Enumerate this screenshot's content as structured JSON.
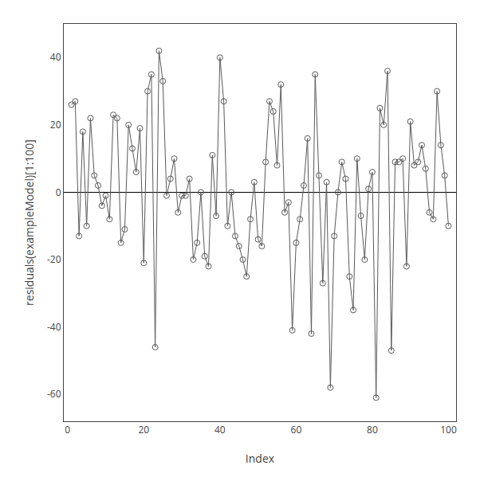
{
  "chart_data": {
    "type": "line",
    "x_label": "Index",
    "y_label": "residuals(exampleModel)[1:100]",
    "x": [
      1,
      2,
      3,
      4,
      5,
      6,
      7,
      8,
      9,
      10,
      11,
      12,
      13,
      14,
      15,
      16,
      17,
      18,
      19,
      20,
      21,
      22,
      23,
      24,
      25,
      26,
      27,
      28,
      29,
      30,
      31,
      32,
      33,
      34,
      35,
      36,
      37,
      38,
      39,
      40,
      41,
      42,
      43,
      44,
      45,
      46,
      47,
      48,
      49,
      50,
      51,
      52,
      53,
      54,
      55,
      56,
      57,
      58,
      59,
      60,
      61,
      62,
      63,
      64,
      65,
      66,
      67,
      68,
      69,
      70,
      71,
      72,
      73,
      74,
      75,
      76,
      77,
      78,
      79,
      80,
      81,
      82,
      83,
      84,
      85,
      86,
      87,
      88,
      89,
      90,
      91,
      92,
      93,
      94,
      95,
      96,
      97,
      98,
      99,
      100
    ],
    "values": [
      26,
      27,
      -13,
      18,
      -10,
      22,
      5,
      2,
      -4,
      -1,
      -8,
      23,
      22,
      -15,
      -11,
      20,
      13,
      6,
      19,
      -21,
      30,
      35,
      -46,
      42,
      33,
      -1,
      4,
      10,
      -6,
      -1,
      -1,
      4,
      -20,
      -15,
      0,
      -19,
      -22,
      11,
      -7,
      40,
      27,
      -10,
      0,
      -13,
      -16,
      -20,
      -25,
      -8,
      3,
      -14,
      -16,
      9,
      27,
      24,
      8,
      32,
      -6,
      -3,
      -41,
      -15,
      -8,
      2,
      16,
      -42,
      35,
      5,
      -27,
      3,
      -58,
      -13,
      0,
      9,
      4,
      -25,
      -35,
      10,
      -7,
      -20,
      1,
      6,
      -61,
      25,
      20,
      36,
      -47,
      9,
      9,
      10,
      -22,
      21,
      8,
      9,
      14,
      7,
      -6,
      -8,
      30,
      14,
      5,
      -10
    ],
    "color": "#595959",
    "marker": "circle-open",
    "xlim": [
      -1,
      102
    ],
    "xticks": [
      0,
      20,
      40,
      60,
      80,
      100
    ],
    "ylim": [
      -68,
      50
    ],
    "yticks": [
      -60,
      -40,
      -20,
      0,
      20,
      40
    ],
    "grid": false
  }
}
